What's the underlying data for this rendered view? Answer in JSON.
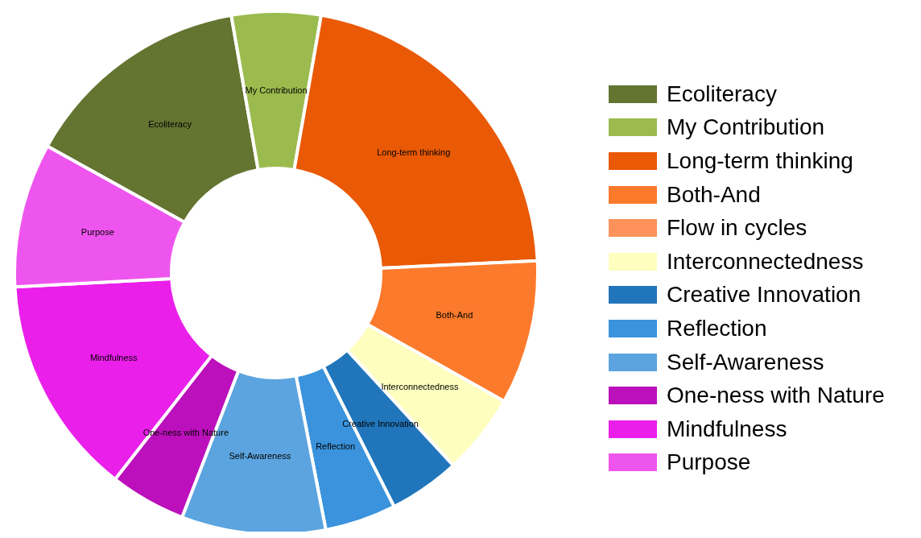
{
  "chart_data": {
    "type": "donut",
    "categories": [
      "Ecoliteracy",
      "My Contribution",
      "Long-term thinking",
      "Both-And",
      "Flow in cycles",
      "Interconnectedness",
      "Creative Innovation",
      "Reflection",
      "Self-Awareness",
      "One-ness with Nature",
      "Mindfulness",
      "Purpose"
    ],
    "values": [
      14.2,
      5.5,
      21.5,
      8.9,
      0,
      5,
      4.4,
      4.4,
      8.9,
      4.7,
      13.6,
      8.9
    ],
    "colors": [
      "#647431",
      "#9bbb4f",
      "#e95906",
      "#fc7a2c",
      "#fd935a",
      "#fefebe",
      "#2176bb",
      "#3a93dc",
      "#5ba4df",
      "#bb10bb",
      "#ea1fea",
      "#ee55ee"
    ],
    "legend": "right"
  }
}
